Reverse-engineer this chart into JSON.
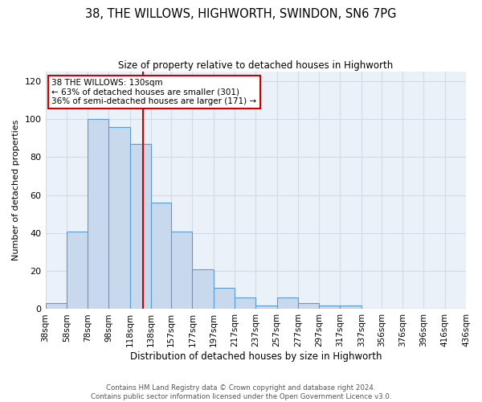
{
  "title": "38, THE WILLOWS, HIGHWORTH, SWINDON, SN6 7PG",
  "subtitle": "Size of property relative to detached houses in Highworth",
  "xlabel": "Distribution of detached houses by size in Highworth",
  "ylabel": "Number of detached properties",
  "bar_edges": [
    38,
    58,
    78,
    98,
    118,
    138,
    157,
    177,
    197,
    217,
    237,
    257,
    277,
    297,
    317,
    337,
    356,
    376,
    396,
    416,
    436
  ],
  "bar_heights": [
    3,
    41,
    100,
    96,
    87,
    56,
    41,
    21,
    11,
    6,
    2,
    6,
    3,
    2,
    2,
    0,
    0,
    0,
    0,
    0
  ],
  "bar_color": "#c8d9ee",
  "bar_edge_color": "#5b9bd5",
  "red_line_x": 130,
  "annotation_title": "38 THE WILLOWS: 130sqm",
  "annotation_line1": "← 63% of detached houses are smaller (301)",
  "annotation_line2": "36% of semi-detached houses are larger (171) →",
  "annotation_box_color": "#ffffff",
  "annotation_box_edge": "#cc0000",
  "red_line_color": "#cc0000",
  "ylim": [
    0,
    125
  ],
  "yticks": [
    0,
    20,
    40,
    60,
    80,
    100,
    120
  ],
  "xtick_labels": [
    "38sqm",
    "58sqm",
    "78sqm",
    "98sqm",
    "118sqm",
    "138sqm",
    "157sqm",
    "177sqm",
    "197sqm",
    "217sqm",
    "237sqm",
    "257sqm",
    "277sqm",
    "297sqm",
    "317sqm",
    "337sqm",
    "356sqm",
    "376sqm",
    "396sqm",
    "416sqm",
    "436sqm"
  ],
  "footnote1": "Contains HM Land Registry data © Crown copyright and database right 2024.",
  "footnote2": "Contains public sector information licensed under the Open Government Licence v3.0.",
  "grid_color": "#d0dce8",
  "background_color": "#eaf1f8",
  "title_fontsize": 10.5,
  "subtitle_fontsize": 8.5
}
